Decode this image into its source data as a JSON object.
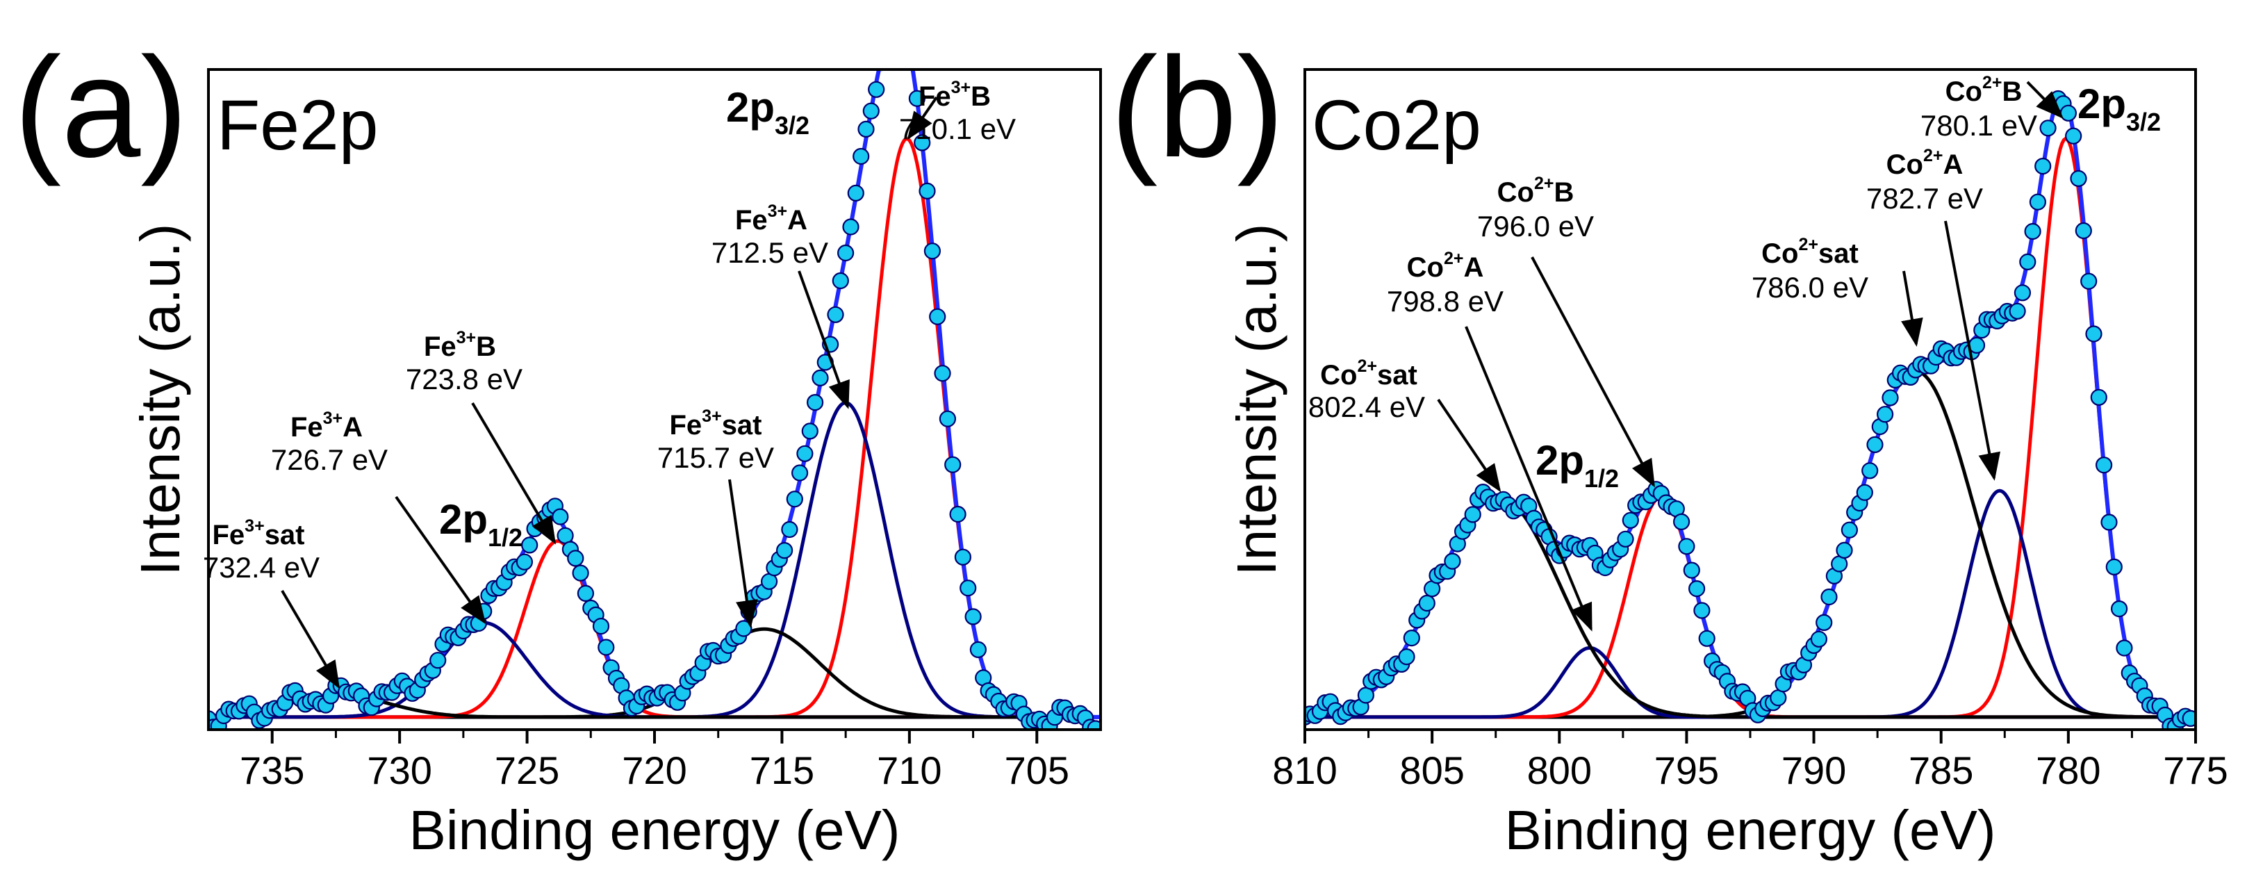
{
  "chart_data": [
    {
      "type": "line",
      "panel_letter": "(a)",
      "element_label": "Fe2p",
      "xlabel": "Binding energy (eV)",
      "ylabel": "Intensity (a.u.)",
      "xlim": [
        737.5,
        702.5
      ],
      "x_ticks": [
        735,
        730,
        725,
        720,
        715,
        710,
        705
      ],
      "x_tick_labels": [
        "735",
        "730",
        "725",
        "720",
        "715",
        "710",
        "705"
      ],
      "ylim": [
        -0.02,
        1.03
      ],
      "background": 0.0,
      "components": [
        {
          "name": "Fe3+B (2p3/2)",
          "center": 710.1,
          "height": 0.92,
          "sigma": 1.35,
          "color": "#ff0000"
        },
        {
          "name": "Fe3+A (2p3/2)",
          "center": 712.5,
          "height": 0.5,
          "sigma": 1.55,
          "color": "#000080"
        },
        {
          "name": "Fe3+sat (2p3/2)",
          "center": 715.7,
          "height": 0.14,
          "sigma": 2.2,
          "color": "#000000"
        },
        {
          "name": "Fe3+B (2p1/2)",
          "center": 723.8,
          "height": 0.28,
          "sigma": 1.3,
          "color": "#ff0000"
        },
        {
          "name": "Fe3+A (2p1/2)",
          "center": 726.7,
          "height": 0.15,
          "sigma": 1.7,
          "color": "#000080"
        },
        {
          "name": "Fe3+sat (2p1/2)",
          "center": 732.4,
          "height": 0.035,
          "sigma": 2.0,
          "color": "#000000"
        }
      ],
      "annotations": [
        {
          "name": "Fe",
          "sup": "3+",
          "suffix": "B",
          "energy": "710.1 eV"
        },
        {
          "name": "Fe",
          "sup": "3+",
          "suffix": "A",
          "energy": "712.5 eV"
        },
        {
          "name": "Fe",
          "sup": "3+",
          "suffix": "sat",
          "energy": "715.7 eV"
        },
        {
          "name": "Fe",
          "sup": "3+",
          "suffix": "B",
          "energy": "723.8 eV"
        },
        {
          "name": "Fe",
          "sup": "3+",
          "suffix": "A",
          "energy": "726.7 eV"
        },
        {
          "name": "Fe",
          "sup": "3+",
          "suffix": "sat",
          "energy": "732.4 eV"
        }
      ],
      "orbitals": [
        {
          "main": "2p",
          "sub": "3/2"
        },
        {
          "main": "2p",
          "sub": "1/2"
        }
      ]
    },
    {
      "type": "line",
      "panel_letter": "(b)",
      "element_label": "Co2p",
      "xlabel": "Binding energy (eV)",
      "ylabel": "Intensity (a.u.)",
      "xlim": [
        810,
        775
      ],
      "x_ticks": [
        810,
        805,
        800,
        795,
        790,
        785,
        780,
        775
      ],
      "x_tick_labels": [
        "810",
        "805",
        "800",
        "795",
        "790",
        "785",
        "780",
        "775"
      ],
      "ylim": [
        -0.02,
        1.03
      ],
      "background": 0.0,
      "components": [
        {
          "name": "Co2+B (2p3/2)",
          "center": 780.1,
          "height": 0.92,
          "sigma": 1.15,
          "color": "#ff0000"
        },
        {
          "name": "Co2+A (2p3/2)",
          "center": 782.7,
          "height": 0.36,
          "sigma": 1.25,
          "color": "#000080"
        },
        {
          "name": "Co2+sat (2p3/2)",
          "center": 786.0,
          "height": 0.55,
          "sigma": 2.3,
          "color": "#000000"
        },
        {
          "name": "Co2+B (2p1/2)",
          "center": 796.0,
          "height": 0.35,
          "sigma": 1.3,
          "color": "#ff0000"
        },
        {
          "name": "Co2+A (2p1/2)",
          "center": 798.8,
          "height": 0.11,
          "sigma": 1.1,
          "color": "#000080"
        },
        {
          "name": "Co2+sat (2p1/2)",
          "center": 802.4,
          "height": 0.35,
          "sigma": 2.4,
          "color": "#000000"
        }
      ],
      "annotations": [
        {
          "name": "Co",
          "sup": "2+",
          "suffix": "B",
          "energy": "780.1 eV"
        },
        {
          "name": "Co",
          "sup": "2+",
          "suffix": "A",
          "energy": "782.7 eV"
        },
        {
          "name": "Co",
          "sup": "2+",
          "suffix": "sat",
          "energy": "786.0 eV"
        },
        {
          "name": "Co",
          "sup": "2+",
          "suffix": "B",
          "energy": "796.0 eV"
        },
        {
          "name": "Co",
          "sup": "2+",
          "suffix": "A",
          "energy": "798.8 eV"
        },
        {
          "name": "Co",
          "sup": "2+",
          "suffix": "sat",
          "energy": "802.4 eV"
        }
      ],
      "orbitals": [
        {
          "main": "2p",
          "sub": "3/2"
        },
        {
          "main": "2p",
          "sub": "1/2"
        }
      ]
    }
  ],
  "colors": {
    "data_marker_fill": "#19c8f0",
    "data_marker_stroke": "#00006e",
    "envelope": "#1e28ff"
  }
}
